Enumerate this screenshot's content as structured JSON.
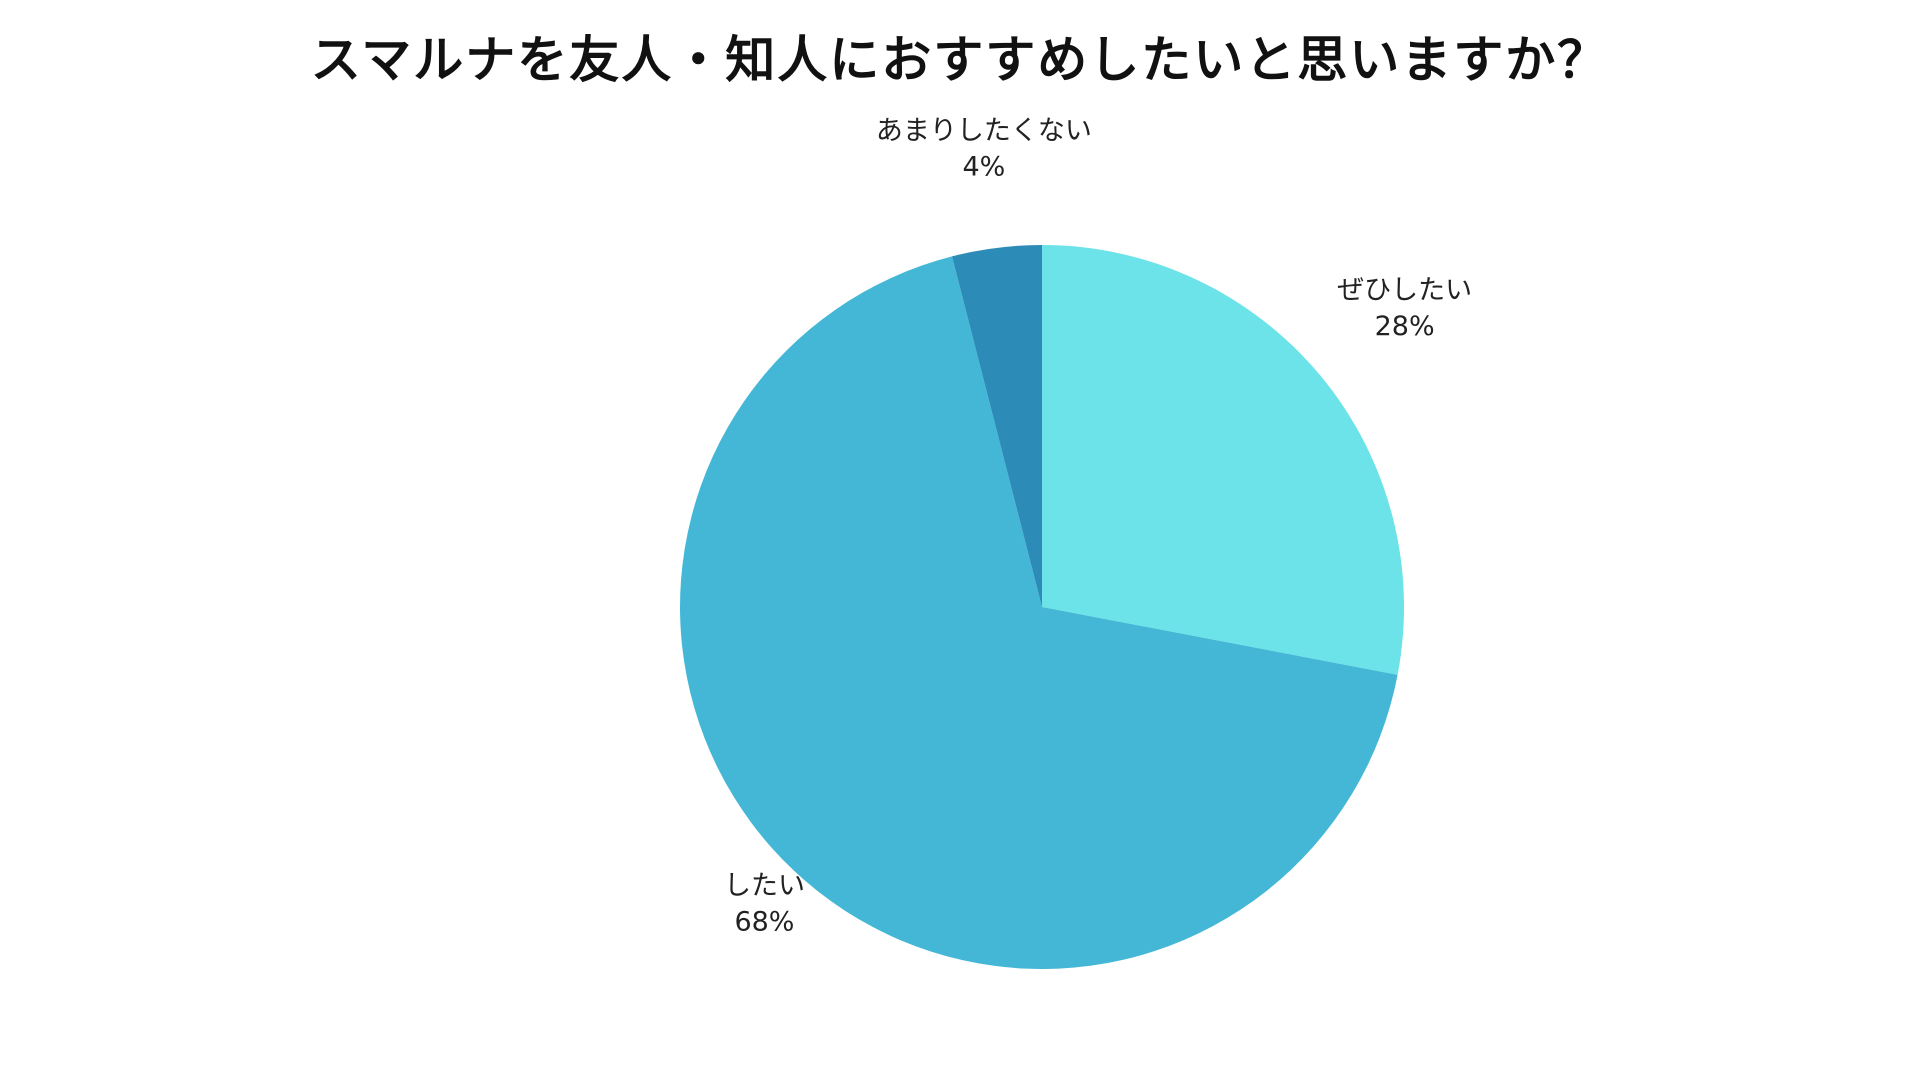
{
  "chart_data": {
    "type": "pie",
    "title": "スマルナを友人・知人におすすめしたいと思いますか？",
    "start_angle_deg": 0,
    "direction": "clockwise",
    "slices": [
      {
        "label": "ぜひしたい",
        "value": 28,
        "value_label": "28%",
        "color": "#6be3e8"
      },
      {
        "label": "したい",
        "value": 68,
        "value_label": "68%",
        "color": "#43b7d5"
      },
      {
        "label": "あまりしたくない",
        "value": 4,
        "value_label": "4%",
        "color": "#2d8bb8"
      }
    ]
  }
}
